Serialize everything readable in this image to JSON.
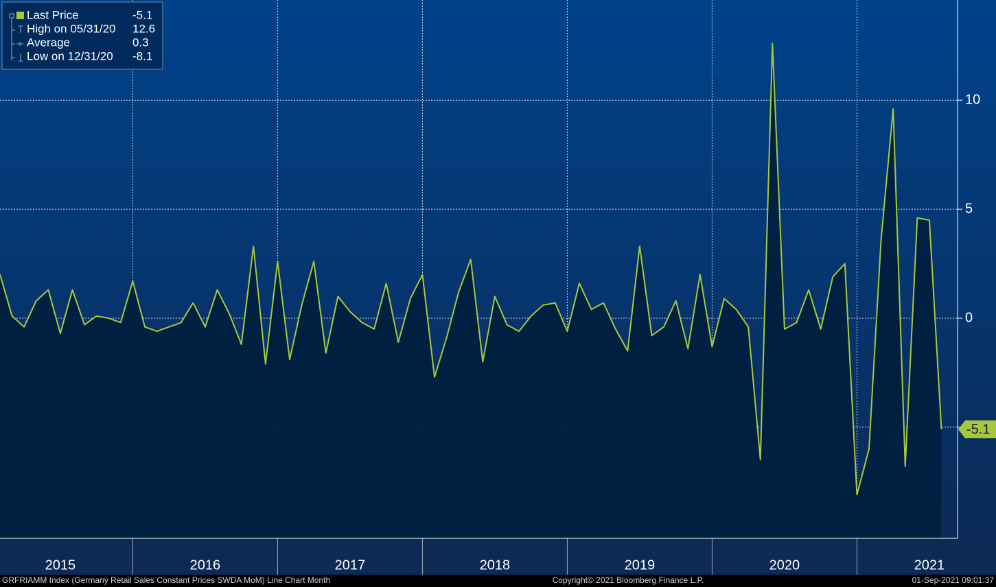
{
  "chart_data": {
    "type": "line",
    "xlabels": [
      "2015",
      "2016",
      "2017",
      "2018",
      "2019",
      "2020",
      "2021"
    ],
    "series": [
      {
        "name": "Last Price",
        "color": "#a8c83c",
        "values": [
          2.0,
          0.1,
          -0.4,
          0.8,
          1.3,
          -0.7,
          1.3,
          -0.3,
          0.1,
          0.0,
          -0.2,
          1.7,
          -0.4,
          -0.6,
          -0.4,
          -0.2,
          0.7,
          -0.4,
          1.3,
          0.2,
          -1.2,
          3.3,
          -2.1,
          2.6,
          -1.9,
          0.6,
          2.6,
          -1.6,
          1.0,
          0.3,
          -0.2,
          -0.5,
          1.6,
          -1.1,
          0.9,
          2.0,
          -2.7,
          -0.9,
          1.2,
          2.7,
          -2.0,
          1.0,
          -0.3,
          -0.6,
          0.1,
          0.6,
          0.7,
          -0.6,
          1.6,
          0.4,
          0.7,
          -0.5,
          -1.5,
          3.3,
          -0.8,
          -0.4,
          0.8,
          -1.4,
          2.0,
          -1.3,
          0.9,
          0.4,
          -0.4,
          -6.5,
          12.6,
          -0.5,
          -0.2,
          1.3,
          -0.5,
          1.9,
          2.5,
          -8.1,
          -6.0,
          3.6,
          9.6,
          -6.8,
          4.6,
          4.5,
          -5.1
        ]
      }
    ],
    "legend": [
      {
        "label": "Last Price",
        "value": -5.1
      },
      {
        "label": "High on 05/31/20",
        "value": 12.6
      },
      {
        "label": "Average",
        "value": 0.3
      },
      {
        "label": "Low on 12/31/20",
        "value": -8.1
      }
    ],
    "ylim": [
      -10.1,
      14.6
    ],
    "yticks": [
      -5,
      0,
      5,
      10
    ],
    "grid": true,
    "footer": {
      "left": "GRFRIAMM Index (Germany Retail Sales Constant Prices SWDA MoM) Line Chart  Month",
      "center": "Copyright© 2021 Bloomberg Finance L.P.",
      "right": "01-Sep-2021 09:01:37"
    }
  }
}
